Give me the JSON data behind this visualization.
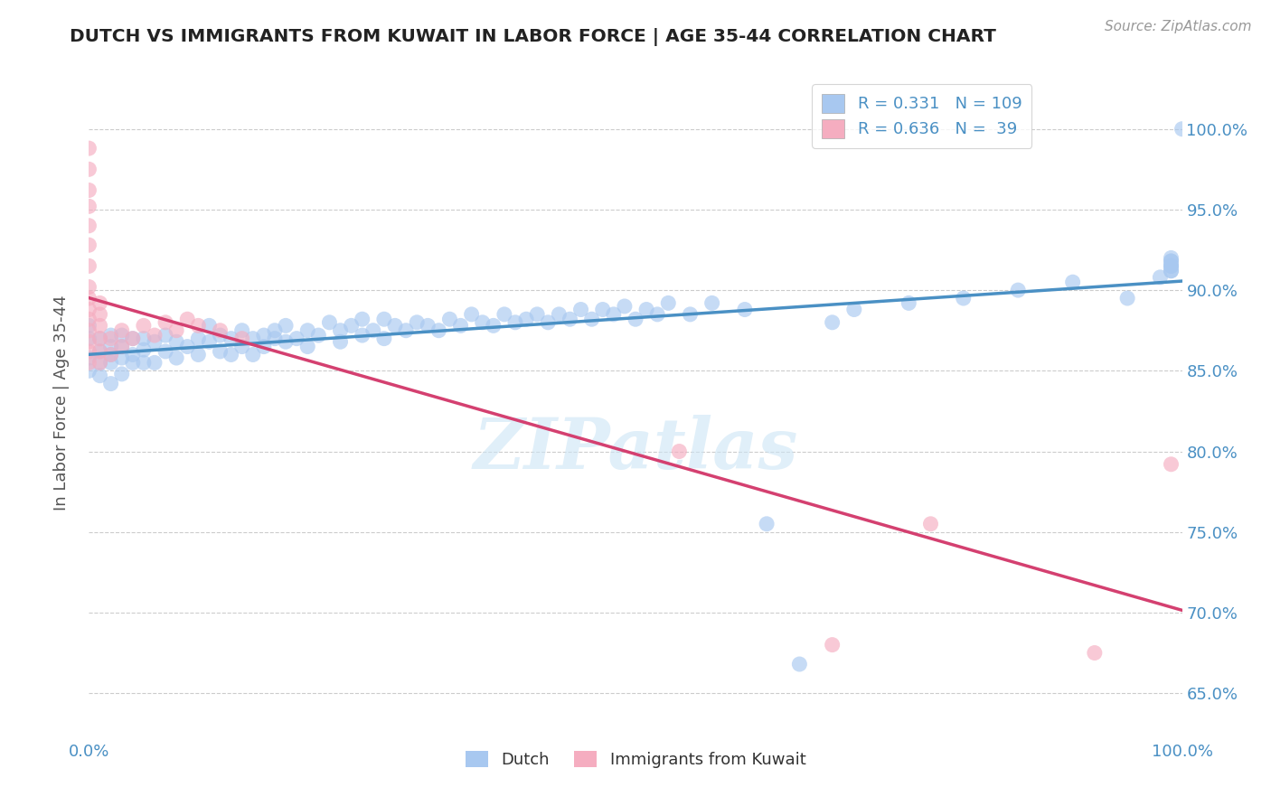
{
  "title": "DUTCH VS IMMIGRANTS FROM KUWAIT IN LABOR FORCE | AGE 35-44 CORRELATION CHART",
  "source": "Source: ZipAtlas.com",
  "ylabel": "In Labor Force | Age 35-44",
  "watermark": "ZIPatlas",
  "dutch_color": "#a8c8f0",
  "kuwait_color": "#f5adc0",
  "dutch_line_color": "#4a90c4",
  "kuwait_line_color": "#d44070",
  "background_color": "#ffffff",
  "grid_color": "#cccccc",
  "title_color": "#222222",
  "axis_label_color": "#555555",
  "tick_label_color": "#4a90c4",
  "xlim": [
    0.0,
    1.0
  ],
  "ylim": [
    0.625,
    1.035
  ],
  "yticks": [
    0.65,
    0.7,
    0.75,
    0.8,
    0.85,
    0.9,
    0.95,
    1.0
  ],
  "ytick_labels": [
    "65.0%",
    "70.0%",
    "75.0%",
    "80.0%",
    "85.0%",
    "90.0%",
    "95.0%",
    "100.0%"
  ],
  "dutch_x": [
    0.0,
    0.0,
    0.0,
    0.0,
    0.01,
    0.01,
    0.01,
    0.01,
    0.02,
    0.02,
    0.02,
    0.02,
    0.02,
    0.03,
    0.03,
    0.03,
    0.03,
    0.04,
    0.04,
    0.04,
    0.05,
    0.05,
    0.05,
    0.06,
    0.06,
    0.07,
    0.07,
    0.08,
    0.08,
    0.09,
    0.1,
    0.1,
    0.11,
    0.11,
    0.12,
    0.12,
    0.13,
    0.13,
    0.14,
    0.14,
    0.15,
    0.15,
    0.16,
    0.16,
    0.17,
    0.17,
    0.18,
    0.18,
    0.19,
    0.2,
    0.2,
    0.21,
    0.22,
    0.23,
    0.23,
    0.24,
    0.25,
    0.25,
    0.26,
    0.27,
    0.27,
    0.28,
    0.29,
    0.3,
    0.31,
    0.32,
    0.33,
    0.34,
    0.35,
    0.36,
    0.37,
    0.38,
    0.39,
    0.4,
    0.41,
    0.42,
    0.43,
    0.44,
    0.45,
    0.46,
    0.47,
    0.48,
    0.49,
    0.5,
    0.51,
    0.52,
    0.53,
    0.55,
    0.57,
    0.6,
    0.62,
    0.65,
    0.68,
    0.7,
    0.75,
    0.8,
    0.85,
    0.9,
    0.95,
    0.98,
    0.99,
    0.99,
    0.99,
    0.99,
    0.99,
    0.99,
    0.99,
    0.99,
    1.0
  ],
  "dutch_y": [
    0.858,
    0.87,
    0.878,
    0.85,
    0.855,
    0.862,
    0.87,
    0.847,
    0.86,
    0.865,
    0.872,
    0.855,
    0.842,
    0.858,
    0.865,
    0.872,
    0.848,
    0.86,
    0.855,
    0.87,
    0.863,
    0.87,
    0.855,
    0.868,
    0.855,
    0.862,
    0.872,
    0.858,
    0.868,
    0.865,
    0.87,
    0.86,
    0.868,
    0.878,
    0.862,
    0.872,
    0.87,
    0.86,
    0.865,
    0.875,
    0.87,
    0.86,
    0.872,
    0.865,
    0.87,
    0.875,
    0.868,
    0.878,
    0.87,
    0.875,
    0.865,
    0.872,
    0.88,
    0.875,
    0.868,
    0.878,
    0.872,
    0.882,
    0.875,
    0.882,
    0.87,
    0.878,
    0.875,
    0.88,
    0.878,
    0.875,
    0.882,
    0.878,
    0.885,
    0.88,
    0.878,
    0.885,
    0.88,
    0.882,
    0.885,
    0.88,
    0.885,
    0.882,
    0.888,
    0.882,
    0.888,
    0.885,
    0.89,
    0.882,
    0.888,
    0.885,
    0.892,
    0.885,
    0.892,
    0.888,
    0.755,
    0.668,
    0.88,
    0.888,
    0.892,
    0.895,
    0.9,
    0.905,
    0.895,
    0.908,
    0.912,
    0.915,
    0.918,
    0.912,
    0.915,
    0.918,
    0.92,
    0.915,
    1.0
  ],
  "kuwait_x": [
    0.0,
    0.0,
    0.0,
    0.0,
    0.0,
    0.0,
    0.0,
    0.0,
    0.0,
    0.0,
    0.0,
    0.0,
    0.0,
    0.0,
    0.0,
    0.01,
    0.01,
    0.01,
    0.01,
    0.01,
    0.01,
    0.02,
    0.02,
    0.03,
    0.03,
    0.04,
    0.05,
    0.06,
    0.07,
    0.08,
    0.09,
    0.1,
    0.12,
    0.14,
    0.54,
    0.68,
    0.77,
    0.92,
    0.99
  ],
  "kuwait_y": [
    0.855,
    0.862,
    0.868,
    0.875,
    0.882,
    0.888,
    0.895,
    0.902,
    0.915,
    0.928,
    0.94,
    0.952,
    0.962,
    0.975,
    0.988,
    0.855,
    0.862,
    0.87,
    0.878,
    0.885,
    0.892,
    0.86,
    0.87,
    0.865,
    0.875,
    0.87,
    0.878,
    0.872,
    0.88,
    0.875,
    0.882,
    0.878,
    0.875,
    0.87,
    0.8,
    0.68,
    0.755,
    0.675,
    0.792
  ],
  "legend_R_dutch": "0.331",
  "legend_N_dutch": "109",
  "legend_R_kuwait": "0.636",
  "legend_N_kuwait": "39"
}
